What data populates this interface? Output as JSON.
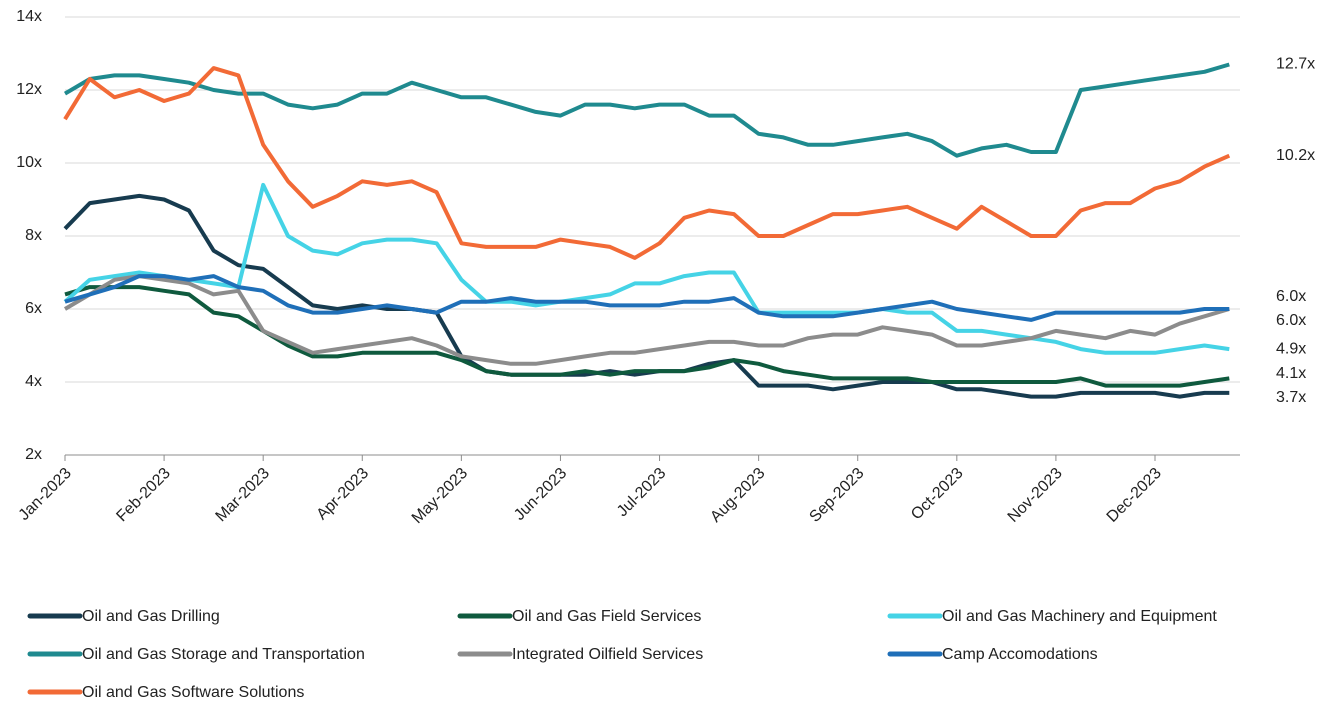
{
  "chart_data": {
    "type": "line",
    "categories": [
      "Jan-2023",
      null,
      null,
      null,
      "Feb-2023",
      null,
      null,
      null,
      "Mar-2023",
      null,
      null,
      null,
      "Apr-2023",
      null,
      null,
      null,
      "May-2023",
      null,
      null,
      null,
      "Jun-2023",
      null,
      null,
      null,
      "Jul-2023",
      null,
      null,
      null,
      "Aug-2023",
      null,
      null,
      null,
      "Sep-2023",
      null,
      null,
      null,
      "Oct-2023",
      null,
      null,
      null,
      "Nov-2023",
      null,
      null,
      null,
      "Dec-2023",
      null,
      null,
      null
    ],
    "ylim": [
      2,
      14
    ],
    "yticks": [
      {
        "value": 2,
        "label": "2x"
      },
      {
        "value": 4,
        "label": "4x"
      },
      {
        "value": 6,
        "label": "6x"
      },
      {
        "value": 8,
        "label": "8x"
      },
      {
        "value": 10,
        "label": "10x"
      },
      {
        "value": 12,
        "label": "12x"
      },
      {
        "value": 14,
        "label": "14x"
      }
    ],
    "grid": true,
    "legend": "bottom",
    "series": [
      {
        "name": "Oil and Gas Drilling",
        "color": "#173b4f",
        "label": "3.7x",
        "values": [
          8.2,
          8.9,
          9.0,
          9.1,
          9.0,
          8.7,
          7.6,
          7.2,
          7.1,
          6.6,
          6.1,
          6.0,
          6.1,
          6.0,
          6.0,
          5.9,
          4.7,
          4.3,
          4.2,
          4.2,
          4.2,
          4.2,
          4.3,
          4.2,
          4.3,
          4.3,
          4.5,
          4.6,
          3.9,
          3.9,
          3.9,
          3.8,
          3.9,
          4.0,
          4.0,
          4.0,
          3.8,
          3.8,
          3.7,
          3.6,
          3.6,
          3.7,
          3.7,
          3.7,
          3.7,
          3.6,
          3.7,
          3.7
        ]
      },
      {
        "name": "Oil and Gas Field Services",
        "color": "#0f5a3e",
        "label": "4.1x",
        "values": [
          6.4,
          6.6,
          6.6,
          6.6,
          6.5,
          6.4,
          5.9,
          5.8,
          5.4,
          5.0,
          4.7,
          4.7,
          4.8,
          4.8,
          4.8,
          4.8,
          4.6,
          4.3,
          4.2,
          4.2,
          4.2,
          4.3,
          4.2,
          4.3,
          4.3,
          4.3,
          4.4,
          4.6,
          4.5,
          4.3,
          4.2,
          4.1,
          4.1,
          4.1,
          4.1,
          4.0,
          4.0,
          4.0,
          4.0,
          4.0,
          4.0,
          4.1,
          3.9,
          3.9,
          3.9,
          3.9,
          4.0,
          4.1
        ]
      },
      {
        "name": "Oil and Gas Machinery and Equipment",
        "color": "#45d3e6",
        "label": "4.9x",
        "values": [
          6.2,
          6.8,
          6.9,
          7.0,
          6.9,
          6.8,
          6.7,
          6.6,
          9.4,
          8.0,
          7.6,
          7.5,
          7.8,
          7.9,
          7.9,
          7.8,
          6.8,
          6.2,
          6.2,
          6.1,
          6.2,
          6.3,
          6.4,
          6.7,
          6.7,
          6.9,
          7.0,
          7.0,
          5.9,
          5.9,
          5.9,
          5.9,
          5.9,
          6.0,
          5.9,
          5.9,
          5.4,
          5.4,
          5.3,
          5.2,
          5.1,
          4.9,
          4.8,
          4.8,
          4.8,
          4.9,
          5.0,
          4.9
        ]
      },
      {
        "name": "Oil and Gas Storage and Transportation",
        "color": "#1f8a8f",
        "label": "12.7x",
        "values": [
          11.9,
          12.3,
          12.4,
          12.4,
          12.3,
          12.2,
          12.0,
          11.9,
          11.9,
          11.6,
          11.5,
          11.6,
          11.9,
          11.9,
          12.2,
          12.0,
          11.8,
          11.8,
          11.6,
          11.4,
          11.3,
          11.6,
          11.6,
          11.5,
          11.6,
          11.6,
          11.3,
          11.3,
          10.8,
          10.7,
          10.5,
          10.5,
          10.6,
          10.7,
          10.8,
          10.6,
          10.2,
          10.4,
          10.5,
          10.3,
          10.3,
          12.0,
          12.1,
          12.2,
          12.3,
          12.4,
          12.5,
          12.7
        ]
      },
      {
        "name": "Integrated Oilfield Services",
        "color": "#8c8c8c",
        "label": "6.0x",
        "values": [
          6.0,
          6.4,
          6.8,
          6.9,
          6.8,
          6.7,
          6.4,
          6.5,
          5.4,
          5.1,
          4.8,
          4.9,
          5.0,
          5.1,
          5.2,
          5.0,
          4.7,
          4.6,
          4.5,
          4.5,
          4.6,
          4.7,
          4.8,
          4.8,
          4.9,
          5.0,
          5.1,
          5.1,
          5.0,
          5.0,
          5.2,
          5.3,
          5.3,
          5.5,
          5.4,
          5.3,
          5.0,
          5.0,
          5.1,
          5.2,
          5.4,
          5.3,
          5.2,
          5.4,
          5.3,
          5.6,
          5.8,
          6.0
        ]
      },
      {
        "name": "Camp Accomodations",
        "color": "#1f6fb8",
        "label": "6.0x",
        "values": [
          6.2,
          6.4,
          6.6,
          6.9,
          6.9,
          6.8,
          6.9,
          6.6,
          6.5,
          6.1,
          5.9,
          5.9,
          6.0,
          6.1,
          6.0,
          5.9,
          6.2,
          6.2,
          6.3,
          6.2,
          6.2,
          6.2,
          6.1,
          6.1,
          6.1,
          6.2,
          6.2,
          6.3,
          5.9,
          5.8,
          5.8,
          5.8,
          5.9,
          6.0,
          6.1,
          6.2,
          6.0,
          5.9,
          5.8,
          5.7,
          5.9,
          5.9,
          5.9,
          5.9,
          5.9,
          5.9,
          6.0,
          6.0
        ]
      },
      {
        "name": "Oil and Gas Software Solutions",
        "color": "#f26a36",
        "label": "10.2x",
        "values": [
          11.2,
          12.3,
          11.8,
          12.0,
          11.7,
          11.9,
          12.6,
          12.4,
          10.5,
          9.5,
          8.8,
          9.1,
          9.5,
          9.4,
          9.5,
          9.2,
          7.8,
          7.7,
          7.7,
          7.7,
          7.9,
          7.8,
          7.7,
          7.4,
          7.8,
          8.5,
          8.7,
          8.6,
          8.0,
          8.0,
          8.3,
          8.6,
          8.6,
          8.7,
          8.8,
          8.5,
          8.2,
          8.8,
          8.4,
          8.0,
          8.0,
          8.7,
          8.9,
          8.9,
          9.3,
          9.5,
          9.9,
          10.2
        ]
      }
    ]
  }
}
